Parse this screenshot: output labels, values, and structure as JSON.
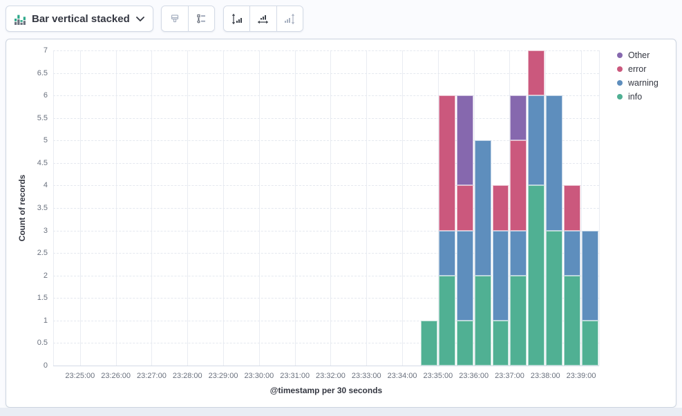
{
  "toolbar": {
    "chart_type": {
      "label": "Bar vertical stacked",
      "icon": "bar-vertical-stacked-icon",
      "chevron_icon": "chevron-down-icon"
    },
    "buttons": [
      {
        "name": "visual-options",
        "icon": "magnet-icon",
        "disabled": true
      },
      {
        "name": "legend-settings",
        "icon": "legend-list-icon",
        "disabled": false
      },
      {
        "name": "left-axis-settings",
        "icon": "left-axis-icon",
        "disabled": false
      },
      {
        "name": "bottom-axis-settings",
        "icon": "bottom-axis-icon",
        "disabled": false
      },
      {
        "name": "right-axis-settings",
        "icon": "right-axis-icon",
        "disabled": true
      }
    ]
  },
  "colors": {
    "panel_border": "#ccd4e0",
    "toolbar_icon": "#3b4049",
    "toolbar_icon_disabled": "#a9b2c2",
    "text": "#343741",
    "tick_text": "#69707d",
    "gridline_vertical": "#e9ecf2",
    "gridline_horizontal": "#e4e8ef"
  },
  "chart_data": {
    "type": "bar",
    "stacked": true,
    "orientation": "vertical",
    "title": "",
    "xlabel": "@timestamp per 30 seconds",
    "ylabel": "Count of records",
    "ylim": [
      0,
      7
    ],
    "grid": true,
    "y_ticks": [
      "0",
      "0.5",
      "1",
      "1.5",
      "2",
      "2.5",
      "3",
      "3.5",
      "4",
      "4.5",
      "5",
      "5.5",
      "6",
      "6.5",
      "7"
    ],
    "x_ticks": [
      "23:25:00",
      "23:26:00",
      "23:27:00",
      "23:28:00",
      "23:29:00",
      "23:30:00",
      "23:31:00",
      "23:32:00",
      "23:33:00",
      "23:34:00",
      "23:35:00",
      "23:36:00",
      "23:37:00",
      "23:38:00",
      "23:39:00"
    ],
    "x": [
      "23:34:30",
      "23:35:00",
      "23:35:30",
      "23:36:00",
      "23:36:30",
      "23:37:00",
      "23:37:30",
      "23:38:00",
      "23:38:30",
      "23:39:00"
    ],
    "bucket_interval_seconds": 30,
    "series": [
      {
        "name": "info",
        "color": "#50B093",
        "values": [
          1,
          2,
          1,
          2,
          1,
          2,
          4,
          3,
          2,
          1
        ]
      },
      {
        "name": "warning",
        "color": "#5E8EBD",
        "values": [
          0,
          1,
          2,
          3,
          2,
          1,
          2,
          3,
          1,
          2
        ]
      },
      {
        "name": "error",
        "color": "#CB587D",
        "values": [
          0,
          3,
          1,
          0,
          1,
          2,
          1,
          0,
          1,
          0
        ]
      },
      {
        "name": "Other",
        "color": "#8668AE",
        "values": [
          0,
          0,
          2,
          0,
          0,
          1,
          0,
          0,
          0,
          0
        ]
      }
    ],
    "legend": {
      "position": "right",
      "items": [
        "Other",
        "error",
        "warning",
        "info"
      ]
    }
  }
}
